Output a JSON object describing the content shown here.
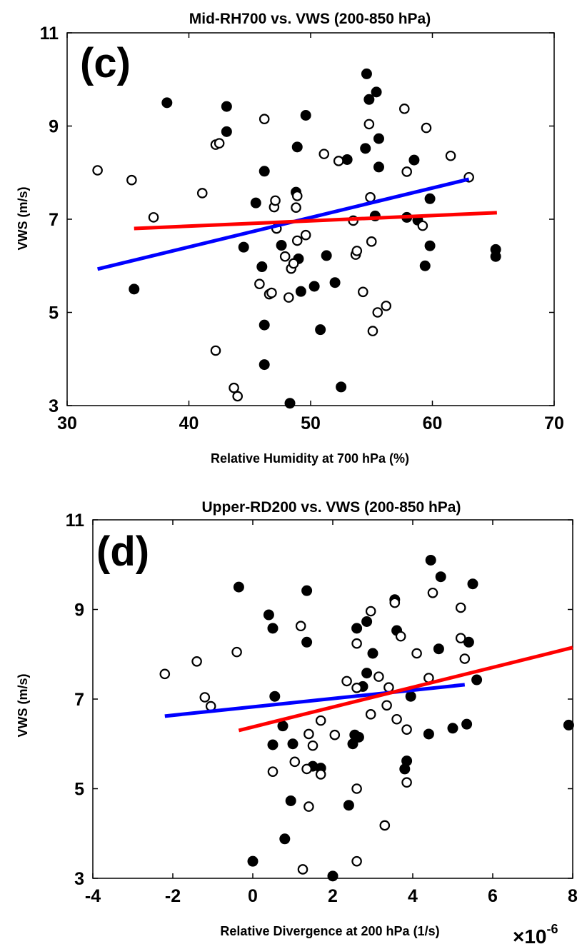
{
  "chart_data": [
    {
      "type": "scatter",
      "panel_label": "(c)",
      "title": "Mid-RH700 vs. VWS (200-850 hPa)",
      "xlabel": "Relative Humidity at 700 hPa (%)",
      "ylabel": "VWS (m/s)",
      "xlim": [
        30,
        70
      ],
      "ylim": [
        3,
        11
      ],
      "xticks": [
        "30",
        "40",
        "50",
        "60",
        "70"
      ],
      "yticks": [
        "3",
        "5",
        "7",
        "9",
        "11"
      ],
      "colors": {
        "filled": "#000000",
        "open": "#ffffff",
        "blue_line": "#0000ff",
        "red_line": "#ff0000"
      },
      "series": [
        {
          "marker": "filled",
          "points": [
            [
              35.5,
              5.5
            ],
            [
              38.2,
              9.5
            ],
            [
              43.1,
              9.42
            ],
            [
              43.1,
              8.88
            ],
            [
              44.5,
              6.4
            ],
            [
              45.5,
              7.35
            ],
            [
              46.0,
              5.98
            ],
            [
              46.2,
              8.03
            ],
            [
              46.2,
              4.73
            ],
            [
              46.2,
              3.88
            ],
            [
              47.6,
              6.44
            ],
            [
              48.3,
              3.05
            ],
            [
              48.8,
              7.58
            ],
            [
              48.9,
              8.55
            ],
            [
              49.0,
              6.15
            ],
            [
              49.2,
              5.45
            ],
            [
              49.6,
              9.23
            ],
            [
              50.3,
              5.56
            ],
            [
              50.8,
              4.63
            ],
            [
              51.3,
              6.22
            ],
            [
              52.0,
              5.64
            ],
            [
              52.5,
              3.4
            ],
            [
              53.0,
              8.28
            ],
            [
              54.5,
              8.52
            ],
            [
              54.6,
              10.12
            ],
            [
              54.8,
              9.57
            ],
            [
              55.3,
              7.07
            ],
            [
              55.4,
              9.73
            ],
            [
              55.6,
              8.12
            ],
            [
              55.6,
              8.73
            ],
            [
              57.9,
              7.04
            ],
            [
              58.5,
              8.27
            ],
            [
              58.8,
              6.98
            ],
            [
              59.4,
              6.0
            ],
            [
              59.8,
              6.43
            ],
            [
              59.8,
              7.44
            ],
            [
              65.2,
              6.35
            ],
            [
              65.2,
              6.2
            ]
          ]
        },
        {
          "marker": "open",
          "points": [
            [
              32.5,
              8.05
            ],
            [
              35.3,
              7.84
            ],
            [
              37.1,
              7.04
            ],
            [
              41.1,
              7.56
            ],
            [
              42.2,
              4.18
            ],
            [
              42.2,
              8.6
            ],
            [
              42.5,
              8.63
            ],
            [
              43.7,
              3.38
            ],
            [
              44.0,
              3.2
            ],
            [
              45.8,
              5.61
            ],
            [
              46.2,
              9.15
            ],
            [
              46.6,
              5.39
            ],
            [
              46.8,
              5.42
            ],
            [
              47.0,
              7.26
            ],
            [
              47.1,
              7.4
            ],
            [
              47.2,
              6.8
            ],
            [
              47.9,
              6.2
            ],
            [
              48.2,
              5.32
            ],
            [
              48.4,
              5.94
            ],
            [
              48.6,
              6.05
            ],
            [
              48.8,
              7.25
            ],
            [
              48.9,
              6.54
            ],
            [
              48.9,
              7.5
            ],
            [
              49.6,
              6.66
            ],
            [
              51.1,
              8.4
            ],
            [
              52.3,
              8.25
            ],
            [
              53.5,
              6.97
            ],
            [
              53.7,
              6.24
            ],
            [
              53.8,
              6.32
            ],
            [
              54.3,
              5.44
            ],
            [
              54.8,
              9.04
            ],
            [
              54.9,
              7.47
            ],
            [
              55.0,
              6.52
            ],
            [
              55.1,
              4.6
            ],
            [
              55.5,
              5.0
            ],
            [
              56.2,
              5.14
            ],
            [
              57.7,
              9.37
            ],
            [
              57.9,
              8.02
            ],
            [
              59.2,
              6.86
            ],
            [
              59.5,
              8.96
            ],
            [
              61.5,
              8.36
            ],
            [
              63.0,
              7.9
            ]
          ]
        }
      ],
      "fit_lines": [
        {
          "color": "blue",
          "x": [
            32.5,
            63.0
          ],
          "y": [
            5.93,
            7.86
          ]
        },
        {
          "color": "red",
          "x": [
            35.5,
            65.3
          ],
          "y": [
            6.8,
            7.14
          ]
        }
      ]
    },
    {
      "type": "scatter",
      "panel_label": "(d)",
      "title": "Upper-RD200 vs. VWS (200-850 hPa)",
      "xlabel": "Relative Divergence at 200 hPa (1/s)",
      "ylabel": "VWS (m/s)",
      "x_multiplier": "×10",
      "x_multiplier_exponent": "-6",
      "xlim": [
        -4,
        8
      ],
      "ylim": [
        3,
        11
      ],
      "xticks": [
        "-4",
        "-2",
        "0",
        "2",
        "4",
        "6",
        "8"
      ],
      "yticks": [
        "3",
        "5",
        "7",
        "9",
        "11"
      ],
      "colors": {
        "filled": "#000000",
        "open": "#ffffff",
        "blue_line": "#0000ff",
        "red_line": "#ff0000"
      },
      "series": [
        {
          "marker": "filled",
          "points": [
            [
              -0.35,
              9.5
            ],
            [
              0.0,
              3.38
            ],
            [
              0.4,
              8.88
            ],
            [
              0.5,
              8.58
            ],
            [
              0.5,
              5.98
            ],
            [
              0.55,
              7.06
            ],
            [
              0.75,
              6.4
            ],
            [
              0.8,
              3.88
            ],
            [
              0.95,
              4.73
            ],
            [
              1.0,
              6.0
            ],
            [
              1.35,
              9.42
            ],
            [
              1.35,
              8.27
            ],
            [
              1.5,
              5.5
            ],
            [
              1.7,
              5.46
            ],
            [
              2.0,
              3.05
            ],
            [
              2.4,
              4.63
            ],
            [
              2.5,
              6.0
            ],
            [
              2.55,
              6.2
            ],
            [
              2.6,
              8.58
            ],
            [
              2.65,
              6.15
            ],
            [
              2.75,
              7.28
            ],
            [
              2.85,
              8.73
            ],
            [
              2.85,
              7.58
            ],
            [
              3.0,
              8.02
            ],
            [
              3.55,
              9.22
            ],
            [
              3.6,
              8.53
            ],
            [
              3.8,
              5.44
            ],
            [
              3.85,
              5.62
            ],
            [
              3.95,
              7.06
            ],
            [
              4.4,
              6.22
            ],
            [
              4.45,
              10.1
            ],
            [
              4.65,
              8.12
            ],
            [
              4.7,
              9.73
            ],
            [
              5.0,
              6.35
            ],
            [
              5.35,
              6.44
            ],
            [
              5.4,
              8.27
            ],
            [
              5.5,
              9.57
            ],
            [
              5.6,
              7.43
            ],
            [
              7.9,
              6.42
            ]
          ]
        },
        {
          "marker": "open",
          "points": [
            [
              -2.2,
              7.56
            ],
            [
              -1.4,
              7.84
            ],
            [
              -1.2,
              7.04
            ],
            [
              -1.05,
              6.84
            ],
            [
              -0.4,
              8.05
            ],
            [
              0.5,
              5.38
            ],
            [
              1.05,
              5.6
            ],
            [
              1.2,
              8.63
            ],
            [
              1.25,
              3.2
            ],
            [
              1.35,
              5.44
            ],
            [
              1.4,
              6.22
            ],
            [
              1.4,
              4.6
            ],
            [
              1.5,
              5.96
            ],
            [
              1.7,
              6.52
            ],
            [
              1.7,
              5.32
            ],
            [
              2.05,
              6.2
            ],
            [
              2.35,
              7.4
            ],
            [
              2.6,
              8.24
            ],
            [
              2.6,
              7.25
            ],
            [
              2.6,
              5.0
            ],
            [
              2.6,
              3.38
            ],
            [
              2.95,
              6.66
            ],
            [
              2.95,
              8.96
            ],
            [
              3.15,
              7.5
            ],
            [
              3.3,
              4.18
            ],
            [
              3.35,
              6.86
            ],
            [
              3.4,
              7.26
            ],
            [
              3.55,
              9.15
            ],
            [
              3.6,
              6.55
            ],
            [
              3.7,
              8.4
            ],
            [
              3.85,
              6.32
            ],
            [
              3.85,
              5.14
            ],
            [
              4.1,
              8.02
            ],
            [
              4.4,
              7.47
            ],
            [
              4.5,
              9.37
            ],
            [
              5.2,
              9.04
            ],
            [
              5.2,
              8.36
            ],
            [
              5.3,
              7.9
            ]
          ]
        }
      ],
      "fit_lines": [
        {
          "color": "blue",
          "x": [
            -2.2,
            5.3
          ],
          "y": [
            6.62,
            7.32
          ]
        },
        {
          "color": "red",
          "x": [
            -0.35,
            8.0
          ],
          "y": [
            6.3,
            8.15
          ]
        }
      ]
    }
  ]
}
